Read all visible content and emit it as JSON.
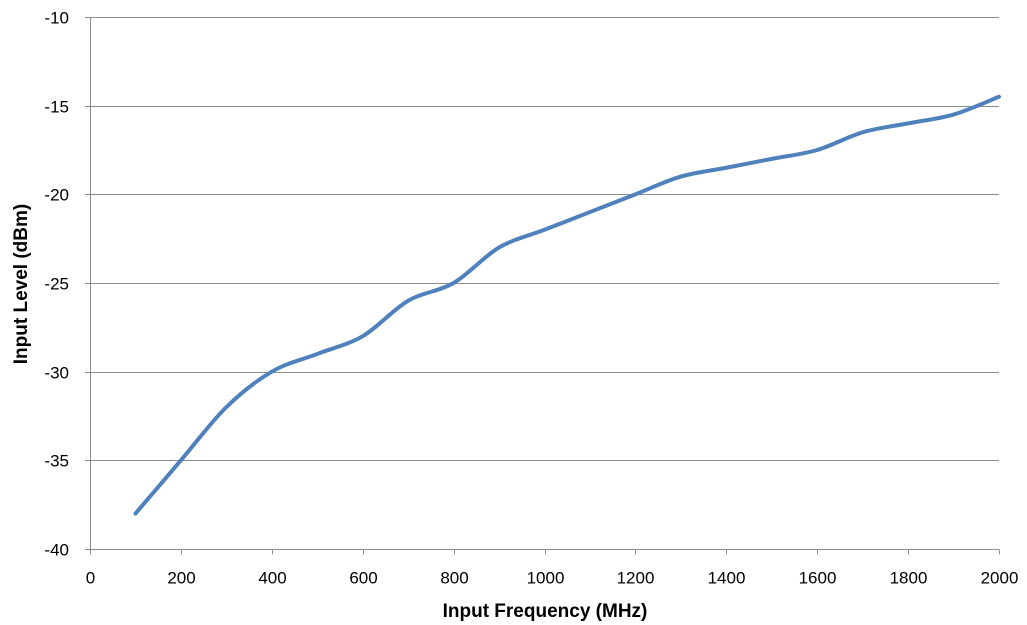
{
  "chart_data": {
    "type": "line",
    "title": "",
    "xlabel": "Input Frequency (MHz)",
    "ylabel": "Input Level (dBm)",
    "xlim": [
      0,
      2000
    ],
    "ylim": [
      -40,
      -10
    ],
    "x_ticks": [
      0,
      200,
      400,
      600,
      800,
      1000,
      1200,
      1400,
      1600,
      1800,
      2000
    ],
    "y_ticks": [
      -10,
      -15,
      -20,
      -25,
      -30,
      -35,
      -40
    ],
    "x_tick_labels": [
      "0",
      "200",
      "400",
      "600",
      "800",
      "1000",
      "1200",
      "1400",
      "1600",
      "1800",
      "2000"
    ],
    "y_tick_labels": [
      "-10",
      "-15",
      "-20",
      "-25",
      "-30",
      "-35",
      "-40"
    ],
    "grid": "horizontal",
    "legend": "none",
    "series": [
      {
        "color": "#4f81bd",
        "x": [
          100,
          200,
          300,
          400,
          500,
          600,
          700,
          800,
          900,
          1000,
          1100,
          1200,
          1300,
          1400,
          1500,
          1600,
          1700,
          1800,
          1900,
          2000
        ],
        "y": [
          -38,
          -35,
          -32,
          -30,
          -29,
          -28,
          -26,
          -25,
          -23,
          -22,
          -21,
          -20,
          -19,
          -18.5,
          -18,
          -17.5,
          -16.5,
          -16,
          -15.5,
          -14.5
        ]
      }
    ]
  }
}
